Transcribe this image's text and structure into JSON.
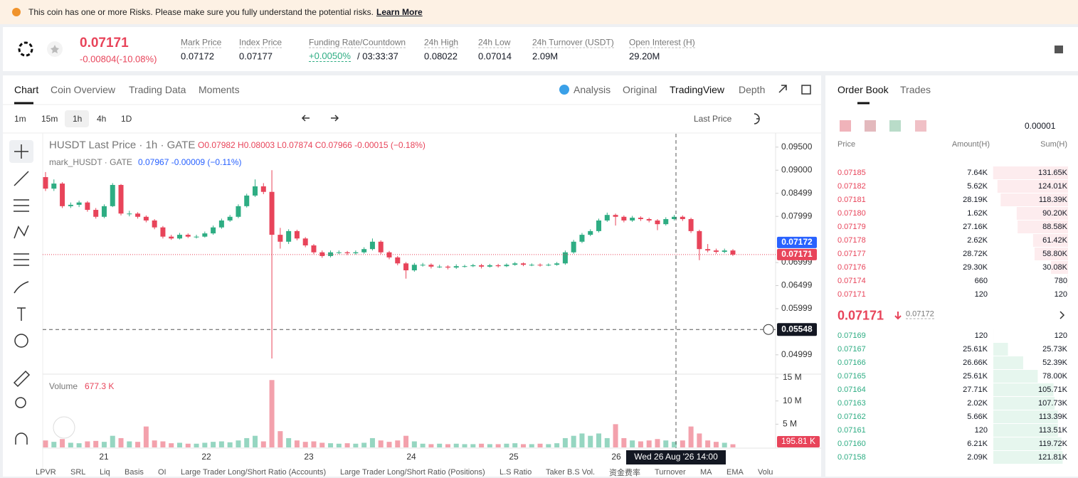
{
  "banner": {
    "text": "This coin has one or more Risks. Please make sure you fully understand the potential risks.",
    "link": "Learn More"
  },
  "ticker": {
    "price": "0.07171",
    "change": "-0.00804(-10.08%)",
    "stats": [
      {
        "label": "Mark Price",
        "value": "0.07172"
      },
      {
        "label": "Index Price",
        "value": "0.07177"
      },
      {
        "label": "Funding Rate/Countdown",
        "value": "+0.0050%",
        "extra": "/ 03:33:37"
      },
      {
        "label": "24h High",
        "value": "0.08022"
      },
      {
        "label": "24h Low",
        "value": "0.07014"
      },
      {
        "label": "24h Turnover (USDT)",
        "value": "2.09M"
      },
      {
        "label": "Open Interest (H)",
        "value": "29.20M"
      }
    ]
  },
  "tabs": [
    "Chart",
    "Coin Overview",
    "Trading Data",
    "Moments"
  ],
  "views": [
    "Analysis",
    "Original",
    "TradingView",
    "Depth"
  ],
  "intervals": [
    "1m",
    "15m",
    "1h",
    "4h",
    "1D"
  ],
  "price_type": "Last Price",
  "chart": {
    "type": "candlestick",
    "up_color": "#2ead83",
    "down_color": "#e8445a",
    "legend_main": {
      "symbol": "HUSDT Last Price · 1h · GATE",
      "ohlc": "O0.07982 H0.08003 L0.07874 C0.07966 -0.00015 (−0.18%)"
    },
    "legend_mark": {
      "symbol": "mark_HUSDT · GATE",
      "value": "0.07967 -0.00009 (−0.11%)"
    },
    "volume_title": "Volume",
    "volume_value": "677.3 K",
    "ylim": [
      0.0458,
      0.0979
    ],
    "yticks": [
      {
        "value": 0.095,
        "label": "0.09500"
      },
      {
        "value": 0.09,
        "label": "0.09000"
      },
      0.08499,
      0.07999,
      0.06999,
      0.06499,
      0.05999,
      0.04999
    ],
    "volume_ylim": [
      0,
      16000000
    ],
    "volume_ticks": [
      {
        "value": 5000000,
        "label": "5 M"
      },
      {
        "value": 10000000,
        "label": "10 M"
      },
      {
        "value": 15000000,
        "label": "15 M"
      }
    ],
    "x_labels": [
      "21",
      "22",
      "23",
      "24",
      "25",
      "26"
    ],
    "price_labels": [
      {
        "value": 0.07172,
        "label": "0.07172",
        "color": "#2962ff"
      },
      {
        "value": 0.07171,
        "label": "0.07171",
        "color": "#e8445a"
      }
    ],
    "crosshair": {
      "value": 0.05548,
      "label": "0.05548",
      "time": "Wed 26 Aug '26 14:00",
      "volume": {
        "value": 195810,
        "label": "195.81 K"
      }
    },
    "candles": [
      [
        0.0885,
        0.0896,
        0.0855,
        0.086
      ],
      [
        0.086,
        0.088,
        0.0855,
        0.0871
      ],
      [
        0.0871,
        0.0874,
        0.0818,
        0.0822
      ],
      [
        0.0822,
        0.083,
        0.0818,
        0.0825
      ],
      [
        0.0825,
        0.0834,
        0.082,
        0.083
      ],
      [
        0.083,
        0.0833,
        0.081,
        0.0814
      ],
      [
        0.0814,
        0.0818,
        0.0795,
        0.0799
      ],
      [
        0.0799,
        0.0826,
        0.0796,
        0.0822
      ],
      [
        0.0822,
        0.0872,
        0.082,
        0.0868
      ],
      [
        0.0868,
        0.087,
        0.0802,
        0.0806
      ],
      [
        0.0806,
        0.0812,
        0.08,
        0.0806
      ],
      [
        0.0806,
        0.0809,
        0.0795,
        0.0799
      ],
      [
        0.0799,
        0.0802,
        0.0787,
        0.0791
      ],
      [
        0.0791,
        0.0794,
        0.0772,
        0.0776
      ],
      [
        0.0776,
        0.0779,
        0.0752,
        0.0756
      ],
      [
        0.0756,
        0.076,
        0.0749,
        0.0752
      ],
      [
        0.0752,
        0.0764,
        0.075,
        0.076
      ],
      [
        0.076,
        0.0763,
        0.0753,
        0.0756
      ],
      [
        0.0756,
        0.076,
        0.0752,
        0.0756
      ],
      [
        0.0756,
        0.0767,
        0.0754,
        0.0763
      ],
      [
        0.0763,
        0.078,
        0.076,
        0.0776
      ],
      [
        0.0776,
        0.0795,
        0.0773,
        0.0791
      ],
      [
        0.0791,
        0.0803,
        0.0788,
        0.0799
      ],
      [
        0.0799,
        0.0826,
        0.0796,
        0.0822
      ],
      [
        0.0822,
        0.0849,
        0.0819,
        0.0845
      ],
      [
        0.0845,
        0.088,
        0.0842,
        0.0865
      ],
      [
        0.0865,
        0.0872,
        0.0848,
        0.0853
      ],
      [
        0.0853,
        0.09,
        0.0492,
        0.076
      ],
      [
        0.076,
        0.0775,
        0.073,
        0.0745
      ],
      [
        0.0745,
        0.0772,
        0.074,
        0.0768
      ],
      [
        0.0768,
        0.0771,
        0.0748,
        0.0752
      ],
      [
        0.0752,
        0.0755,
        0.0733,
        0.0737
      ],
      [
        0.0737,
        0.074,
        0.0718,
        0.0722
      ],
      [
        0.0722,
        0.0726,
        0.071,
        0.0714
      ],
      [
        0.0714,
        0.0726,
        0.0711,
        0.0722
      ],
      [
        0.0722,
        0.0726,
        0.0718,
        0.0722
      ],
      [
        0.0722,
        0.0725,
        0.0716,
        0.072
      ],
      [
        0.072,
        0.0726,
        0.0717,
        0.0722
      ],
      [
        0.0722,
        0.0733,
        0.0719,
        0.0729
      ],
      [
        0.0729,
        0.0752,
        0.0726,
        0.0745
      ],
      [
        0.0745,
        0.0748,
        0.0718,
        0.0722
      ],
      [
        0.0722,
        0.0725,
        0.0707,
        0.0711
      ],
      [
        0.0711,
        0.0714,
        0.0694,
        0.0698
      ],
      [
        0.0698,
        0.0701,
        0.0665,
        0.0683
      ],
      [
        0.0683,
        0.0699,
        0.068,
        0.0695
      ],
      [
        0.0695,
        0.0699,
        0.0691,
        0.0695
      ],
      [
        0.0695,
        0.0698,
        0.0687,
        0.0691
      ],
      [
        0.0691,
        0.0695,
        0.0688,
        0.0691
      ],
      [
        0.0691,
        0.0694,
        0.0685,
        0.0689
      ],
      [
        0.0689,
        0.0696,
        0.0686,
        0.0692
      ],
      [
        0.0692,
        0.0695,
        0.0689,
        0.0692
      ],
      [
        0.0692,
        0.0697,
        0.069,
        0.0694
      ],
      [
        0.0694,
        0.0697,
        0.0687,
        0.0691
      ],
      [
        0.0691,
        0.0697,
        0.0689,
        0.0694
      ],
      [
        0.0694,
        0.0697,
        0.0689,
        0.0692
      ],
      [
        0.0692,
        0.0698,
        0.069,
        0.0695
      ],
      [
        0.0695,
        0.0701,
        0.0693,
        0.0698
      ],
      [
        0.0698,
        0.07,
        0.0692,
        0.0695
      ],
      [
        0.0695,
        0.0698,
        0.0692,
        0.0695
      ],
      [
        0.0695,
        0.0698,
        0.0691,
        0.0694
      ],
      [
        0.0694,
        0.0698,
        0.0692,
        0.0695
      ],
      [
        0.0695,
        0.0701,
        0.0693,
        0.0698
      ],
      [
        0.0698,
        0.0726,
        0.0695,
        0.0722
      ],
      [
        0.0722,
        0.0749,
        0.0719,
        0.0745
      ],
      [
        0.0745,
        0.0764,
        0.0742,
        0.076
      ],
      [
        0.076,
        0.0772,
        0.0757,
        0.0768
      ],
      [
        0.0768,
        0.0795,
        0.0765,
        0.0791
      ],
      [
        0.0791,
        0.0808,
        0.0788,
        0.0803
      ],
      [
        0.0803,
        0.0806,
        0.078,
        0.0799
      ],
      [
        0.0799,
        0.0802,
        0.0787,
        0.0791
      ],
      [
        0.0791,
        0.0801,
        0.0788,
        0.0797
      ],
      [
        0.0797,
        0.08,
        0.079,
        0.0794
      ],
      [
        0.0794,
        0.0797,
        0.0787,
        0.0791
      ],
      [
        0.0791,
        0.0794,
        0.077,
        0.0783
      ],
      [
        0.0783,
        0.0798,
        0.078,
        0.0794
      ],
      [
        0.0794,
        0.0803,
        0.0791,
        0.0799
      ],
      [
        0.0799,
        0.0802,
        0.079,
        0.0794
      ],
      [
        0.0794,
        0.0797,
        0.0764,
        0.0768
      ],
      [
        0.0768,
        0.0771,
        0.0705,
        0.0729
      ],
      [
        0.0729,
        0.074,
        0.0722,
        0.0726
      ],
      [
        0.0726,
        0.073,
        0.0719,
        0.0723
      ],
      [
        0.0723,
        0.073,
        0.072,
        0.0726
      ],
      [
        0.0726,
        0.0729,
        0.0714,
        0.0717
      ]
    ],
    "volumes": [
      1500000,
      1200000,
      1800000,
      1000000,
      900000,
      1300000,
      1400000,
      1200000,
      2500000,
      2000000,
      1300000,
      1200000,
      4500000,
      1500000,
      1300000,
      900000,
      1000000,
      800000,
      800000,
      1000000,
      1200000,
      1300000,
      1100000,
      1500000,
      2000000,
      2500000,
      1300000,
      14500000,
      3500000,
      2000000,
      1500000,
      1200000,
      1300000,
      1000000,
      900000,
      800000,
      900000,
      800000,
      1000000,
      2000000,
      1500000,
      1200000,
      1500000,
      2500000,
      1300000,
      800000,
      700000,
      800000,
      700000,
      800000,
      700000,
      700000,
      800000,
      700000,
      700000,
      800000,
      900000,
      700000,
      700000,
      800000,
      700000,
      900000,
      2000000,
      2500000,
      3000000,
      2500000,
      3000000,
      2000000,
      5000000,
      2000000,
      1500000,
      1300000,
      1500000,
      1800000,
      1500000,
      1200000,
      1500000,
      4500000,
      3000000,
      1500000,
      1200000,
      1000000,
      677300
    ]
  },
  "order_book": {
    "tabs": [
      "Order Book",
      "Trades"
    ],
    "precision": "0.00001",
    "headers": [
      "Price",
      "Amount(H)",
      "Sum(H)"
    ],
    "asks": {
      "prices": [
        "0.07185",
        "0.07182",
        "0.07181",
        "0.07180",
        "0.07179",
        "0.07178",
        "0.07177",
        "0.07176",
        "0.07174",
        "0.07171"
      ],
      "amounts": [
        "7.64K",
        "5.62K",
        "28.19K",
        "1.62K",
        "27.16K",
        "2.62K",
        "28.72K",
        "29.30K",
        "660",
        "120"
      ],
      "sums": [
        131650,
        124010,
        118390,
        90200,
        88580,
        61420,
        58800,
        30080,
        780,
        120
      ],
      "sum_labels": [
        "131.65K",
        "124.01K",
        "118.39K",
        "90.20K",
        "88.58K",
        "61.42K",
        "58.80K",
        "30.08K",
        "780",
        "120"
      ]
    },
    "mid_price": "0.07171",
    "mark_price": "0.07172",
    "bids": {
      "prices": [
        "0.07169",
        "0.07167",
        "0.07166",
        "0.07165",
        "0.07164",
        "0.07163",
        "0.07162",
        "0.07161",
        "0.07160",
        "0.07158"
      ],
      "amounts": [
        "120",
        "25.61K",
        "26.66K",
        "25.61K",
        "27.71K",
        "2.02K",
        "5.66K",
        "120",
        "6.21K",
        "2.09K"
      ],
      "sums": [
        120,
        25730,
        52390,
        78000,
        105710,
        107730,
        113390,
        113510,
        119720,
        121810
      ],
      "sum_labels": [
        "120",
        "25.73K",
        "52.39K",
        "78.00K",
        "105.71K",
        "107.73K",
        "113.39K",
        "113.51K",
        "119.72K",
        "121.81K"
      ]
    }
  },
  "indicators": [
    "LPVR",
    "SRL",
    "Liq",
    "Basis",
    "OI",
    "Large Trader Long/Short Ratio (Accounts)",
    "Large Trader Long/Short Ratio (Positions)",
    "L.S Ratio",
    "Taker B.S Vol.",
    "资金费率",
    "Turnover",
    "MA",
    "EMA",
    "Volu"
  ]
}
